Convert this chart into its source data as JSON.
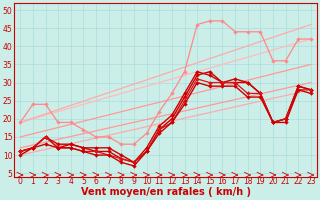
{
  "background_color": "#cceee8",
  "grid_color": "#aadddd",
  "xlabel": "Vent moyen/en rafales ( km/h )",
  "ylabel_ticks": [
    5,
    10,
    15,
    20,
    25,
    30,
    35,
    40,
    45,
    50
  ],
  "xlim": [
    -0.5,
    23.5
  ],
  "ylim": [
    4,
    52
  ],
  "xticks": [
    0,
    1,
    2,
    3,
    4,
    5,
    6,
    7,
    8,
    9,
    10,
    11,
    12,
    13,
    14,
    15,
    16,
    17,
    18,
    19,
    20,
    21,
    22,
    23
  ],
  "series": [
    {
      "x": [
        0,
        23
      ],
      "y": [
        10,
        28
      ],
      "color": "#ffaaaa",
      "lw": 0.9,
      "marker": null
    },
    {
      "x": [
        0,
        23
      ],
      "y": [
        12,
        30
      ],
      "color": "#ff9999",
      "lw": 0.9,
      "marker": null
    },
    {
      "x": [
        0,
        23
      ],
      "y": [
        15,
        35
      ],
      "color": "#ff9999",
      "lw": 0.9,
      "marker": null
    },
    {
      "x": [
        0,
        23
      ],
      "y": [
        19,
        42
      ],
      "color": "#ffbbbb",
      "lw": 0.9,
      "marker": null
    },
    {
      "x": [
        0,
        23
      ],
      "y": [
        19,
        46
      ],
      "color": "#ffaaaa",
      "lw": 0.9,
      "marker": null
    },
    {
      "x": [
        0,
        1,
        2,
        3,
        4,
        5,
        6,
        7,
        8,
        9,
        10,
        11,
        12,
        13,
        14,
        15,
        16,
        17,
        18,
        19,
        20,
        21,
        22,
        23
      ],
      "y": [
        19,
        24,
        24,
        19,
        19,
        17,
        15,
        15,
        13,
        13,
        16,
        22,
        27,
        33,
        46,
        47,
        47,
        44,
        44,
        44,
        36,
        36,
        42,
        42
      ],
      "color": "#ff8888",
      "lw": 0.9,
      "marker": "D",
      "ms": 2.0
    },
    {
      "x": [
        0,
        1,
        2,
        3,
        4,
        5,
        6,
        7,
        8,
        9,
        10,
        11,
        12,
        13,
        14,
        15,
        16,
        17,
        18,
        19,
        20,
        21,
        22,
        23
      ],
      "y": [
        11,
        12,
        15,
        12,
        13,
        12,
        11,
        11,
        9,
        8,
        11,
        17,
        20,
        26,
        32,
        33,
        30,
        30,
        30,
        27,
        19,
        20,
        29,
        28
      ],
      "color": "#cc0000",
      "lw": 1.0,
      "marker": "D",
      "ms": 2.0
    },
    {
      "x": [
        0,
        1,
        2,
        3,
        4,
        5,
        6,
        7,
        8,
        9,
        10,
        11,
        12,
        13,
        14,
        15,
        16,
        17,
        18,
        19,
        20,
        21,
        22,
        23
      ],
      "y": [
        11,
        12,
        15,
        13,
        13,
        12,
        12,
        12,
        10,
        8,
        12,
        18,
        21,
        27,
        33,
        32,
        30,
        31,
        30,
        27,
        19,
        20,
        29,
        28
      ],
      "color": "#cc0000",
      "lw": 1.0,
      "marker": "D",
      "ms": 2.0
    },
    {
      "x": [
        0,
        1,
        2,
        3,
        4,
        5,
        6,
        7,
        8,
        9,
        10,
        11,
        12,
        13,
        14,
        15,
        16,
        17,
        18,
        19,
        20,
        21,
        22,
        23
      ],
      "y": [
        11,
        12,
        15,
        12,
        12,
        11,
        11,
        10,
        9,
        8,
        11,
        17,
        19,
        25,
        31,
        30,
        30,
        30,
        27,
        27,
        19,
        20,
        28,
        28
      ],
      "color": "#dd1111",
      "lw": 0.9,
      "marker": "D",
      "ms": 2.0
    },
    {
      "x": [
        0,
        1,
        2,
        3,
        4,
        5,
        6,
        7,
        8,
        9,
        10,
        11,
        12,
        13,
        14,
        15,
        16,
        17,
        18,
        19,
        20,
        21,
        22,
        23
      ],
      "y": [
        10,
        12,
        13,
        12,
        12,
        11,
        10,
        10,
        8,
        7,
        11,
        16,
        19,
        24,
        30,
        29,
        29,
        29,
        26,
        26,
        19,
        19,
        28,
        27
      ],
      "color": "#cc0000",
      "lw": 1.0,
      "marker": "D",
      "ms": 2.0
    }
  ],
  "arrow_color": "#cc0000",
  "axis_label_fontsize": 7,
  "tick_fontsize": 5.5
}
